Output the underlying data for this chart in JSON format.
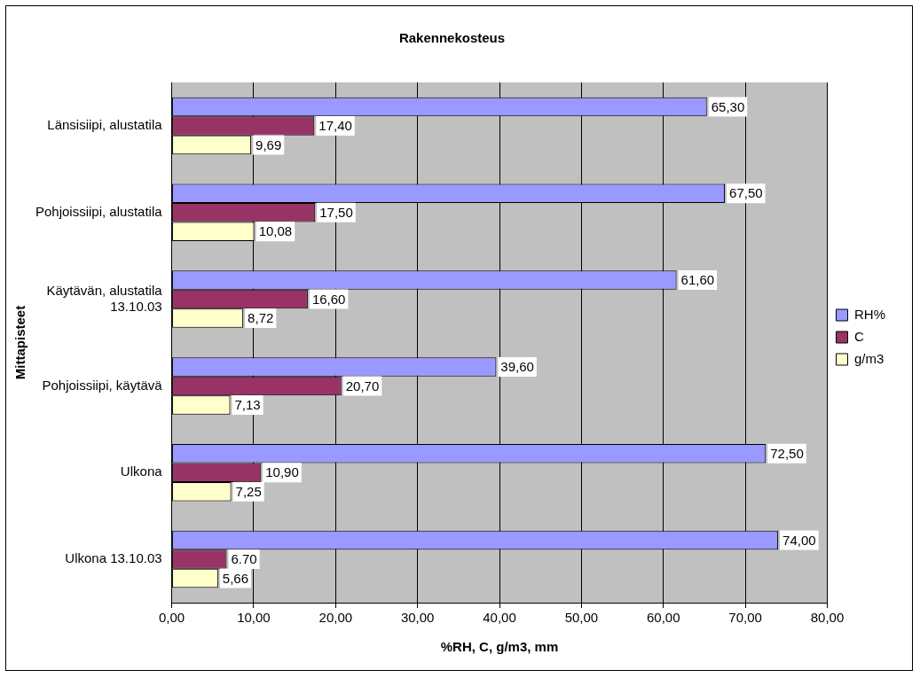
{
  "chart_data": {
    "type": "bar",
    "orientation": "horizontal",
    "title": "Rakennekosteus",
    "xlabel": "%RH, C, g/m3, mm",
    "ylabel": "Mittapisteet",
    "categories": [
      "Länsisiipi, alustatila",
      "Pohjoissiipi, alustatila",
      "Käytävän, alustatila\n13.10.03",
      "Pohjoissiipi, käytävä",
      "Ulkona",
      "Ulkona 13.10.03"
    ],
    "series": [
      {
        "name": "RH%",
        "color": "#9999ff",
        "values": [
          65.3,
          67.5,
          61.6,
          39.6,
          72.5,
          74.0
        ],
        "value_labels": [
          "65,30",
          "67,50",
          "61,60",
          "39,60",
          "72,50",
          "74,00"
        ]
      },
      {
        "name": "C",
        "color": "#993366",
        "values": [
          17.4,
          17.5,
          16.6,
          20.7,
          10.9,
          6.7
        ],
        "value_labels": [
          "17,40",
          "17,50",
          "16,60",
          "20,70",
          "10,90",
          "6.70"
        ]
      },
      {
        "name": "g/m3",
        "color": "#ffffcc",
        "values": [
          9.69,
          10.08,
          8.72,
          7.13,
          7.25,
          5.66
        ],
        "value_labels": [
          "9,69",
          "10,08",
          "8,72",
          "7,13",
          "7,25",
          "5,66"
        ]
      }
    ],
    "xlim": [
      0,
      80
    ],
    "xticks": [
      {
        "value": 0,
        "label": "0,00"
      },
      {
        "value": 10,
        "label": "10,00"
      },
      {
        "value": 20,
        "label": "20,00"
      },
      {
        "value": 30,
        "label": "30,00"
      },
      {
        "value": 40,
        "label": "40,00"
      },
      {
        "value": 50,
        "label": "50,00"
      },
      {
        "value": 60,
        "label": "60,00"
      },
      {
        "value": 70,
        "label": "70,00"
      },
      {
        "value": 80,
        "label": "80,00"
      }
    ],
    "grid": "x",
    "legend": "right"
  }
}
